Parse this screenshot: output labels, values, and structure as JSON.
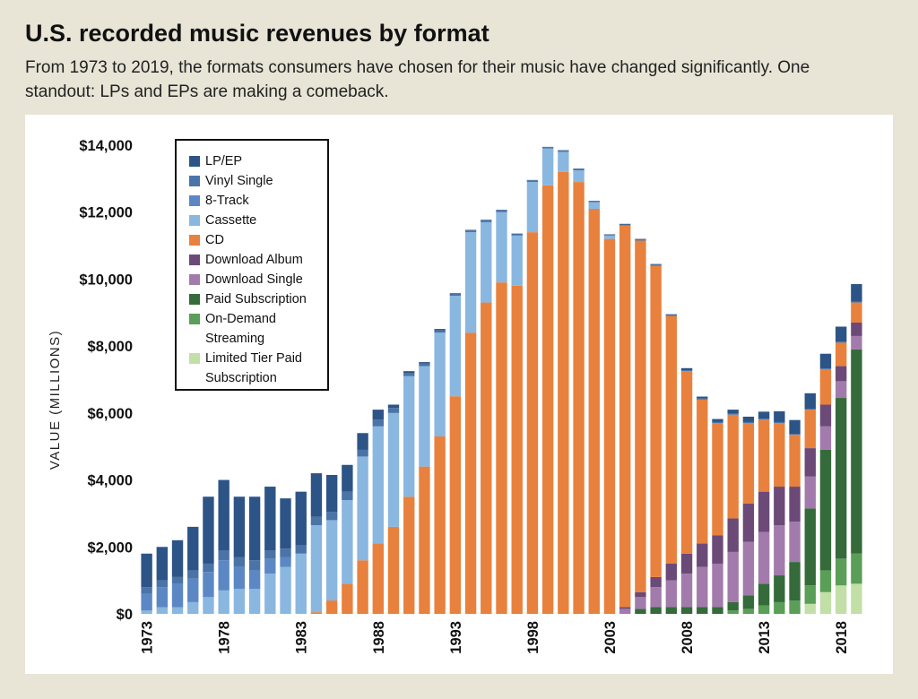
{
  "title": "U.S. recorded music revenues by format",
  "subtitle": "From 1973 to 2019, the formats consumers have chosen for their music have changed significantly. One standout: LPs and EPs are making a comeback.",
  "chart_data": {
    "type": "bar",
    "stacked": true,
    "ylabel": "VALUE (MILLIONS)",
    "xlabel": "",
    "ylim": [
      0,
      14000
    ],
    "yticks": [
      "$0",
      "$2,000",
      "$4,000",
      "$6,000",
      "$8,000",
      "$10,000",
      "$12,000",
      "$14,000"
    ],
    "ytick_values": [
      0,
      2000,
      4000,
      6000,
      8000,
      10000,
      12000,
      14000
    ],
    "categories": [
      1973,
      1974,
      1975,
      1976,
      1977,
      1978,
      1979,
      1980,
      1981,
      1982,
      1983,
      1984,
      1985,
      1986,
      1987,
      1988,
      1989,
      1990,
      1991,
      1992,
      1993,
      1994,
      1995,
      1996,
      1997,
      1998,
      1999,
      2000,
      2001,
      2002,
      2003,
      2004,
      2005,
      2006,
      2007,
      2008,
      2009,
      2010,
      2011,
      2012,
      2013,
      2014,
      2015,
      2016,
      2017,
      2018,
      2019
    ],
    "xtick_labels": [
      "1973",
      "1978",
      "1983",
      "1988",
      "1993",
      "1998",
      "2003",
      "2008",
      "2013",
      "2018"
    ],
    "legend_position": "top-left",
    "series": [
      {
        "name": "Limited Tier Paid Subscription",
        "color": "#c3dfa8",
        "values": [
          0,
          0,
          0,
          0,
          0,
          0,
          0,
          0,
          0,
          0,
          0,
          0,
          0,
          0,
          0,
          0,
          0,
          0,
          0,
          0,
          0,
          0,
          0,
          0,
          0,
          0,
          0,
          0,
          0,
          0,
          0,
          0,
          0,
          0,
          0,
          0,
          0,
          0,
          0,
          0,
          0,
          0,
          0,
          300,
          650,
          850,
          900
        ]
      },
      {
        "name": "On-Demand Streaming",
        "color": "#5a9e57",
        "values": [
          0,
          0,
          0,
          0,
          0,
          0,
          0,
          0,
          0,
          0,
          0,
          0,
          0,
          0,
          0,
          0,
          0,
          0,
          0,
          0,
          0,
          0,
          0,
          0,
          0,
          0,
          0,
          0,
          0,
          0,
          0,
          0,
          0,
          0,
          0,
          0,
          0,
          0,
          100,
          150,
          250,
          350,
          400,
          550,
          650,
          800,
          900
        ]
      },
      {
        "name": "Paid Subscription",
        "color": "#356b3a",
        "values": [
          0,
          0,
          0,
          0,
          0,
          0,
          0,
          0,
          0,
          0,
          0,
          0,
          0,
          0,
          0,
          0,
          0,
          0,
          0,
          0,
          0,
          0,
          0,
          0,
          0,
          0,
          0,
          0,
          0,
          0,
          0,
          0,
          150,
          200,
          200,
          200,
          200,
          200,
          250,
          400,
          650,
          800,
          1150,
          2300,
          3600,
          4800,
          6100
        ]
      },
      {
        "name": "Download Single",
        "color": "#a27bac",
        "values": [
          0,
          0,
          0,
          0,
          0,
          0,
          0,
          0,
          0,
          0,
          0,
          0,
          0,
          0,
          0,
          0,
          0,
          0,
          0,
          0,
          0,
          0,
          0,
          0,
          0,
          0,
          0,
          0,
          0,
          0,
          0,
          150,
          350,
          600,
          800,
          1000,
          1200,
          1300,
          1500,
          1600,
          1550,
          1500,
          1200,
          950,
          700,
          500,
          400
        ]
      },
      {
        "name": "Download Album",
        "color": "#6b4a78",
        "values": [
          0,
          0,
          0,
          0,
          0,
          0,
          0,
          0,
          0,
          0,
          0,
          0,
          0,
          0,
          0,
          0,
          0,
          0,
          0,
          0,
          0,
          0,
          0,
          0,
          0,
          0,
          0,
          0,
          0,
          0,
          0,
          50,
          150,
          300,
          500,
          600,
          700,
          850,
          1000,
          1150,
          1200,
          1150,
          1050,
          850,
          650,
          450,
          400
        ]
      },
      {
        "name": "CD",
        "color": "#e8813d",
        "values": [
          0,
          0,
          0,
          0,
          0,
          0,
          0,
          0,
          0,
          0,
          0,
          50,
          400,
          900,
          1600,
          2100,
          2600,
          3500,
          4400,
          5300,
          6500,
          8400,
          9300,
          9900,
          9800,
          11400,
          12800,
          13200,
          12900,
          12100,
          11200,
          11400,
          10500,
          9300,
          7400,
          5450,
          4300,
          3350,
          3100,
          2400,
          2150,
          1900,
          1550,
          1150,
          1050,
          700,
          600
        ]
      },
      {
        "name": "Cassette",
        "color": "#8ab7e0",
        "values": [
          100,
          200,
          200,
          350,
          500,
          700,
          750,
          750,
          1200,
          1400,
          1800,
          2600,
          2400,
          2500,
          3100,
          3500,
          3400,
          3600,
          3000,
          3100,
          3000,
          3000,
          2400,
          2100,
          1500,
          1500,
          1100,
          600,
          350,
          200,
          100,
          0,
          0,
          0,
          0,
          0,
          0,
          0,
          0,
          0,
          0,
          0,
          0,
          0,
          0,
          0,
          0
        ]
      },
      {
        "name": "8-Track",
        "color": "#5b88c5",
        "values": [
          500,
          600,
          700,
          700,
          750,
          900,
          650,
          550,
          450,
          300,
          0,
          0,
          0,
          0,
          0,
          0,
          0,
          0,
          0,
          0,
          0,
          0,
          0,
          0,
          0,
          0,
          0,
          0,
          0,
          0,
          0,
          0,
          0,
          0,
          0,
          0,
          0,
          0,
          0,
          0,
          0,
          0,
          0,
          0,
          0,
          0,
          0
        ]
      },
      {
        "name": "Vinyl Single",
        "color": "#4a74a8",
        "values": [
          200,
          200,
          200,
          250,
          250,
          300,
          300,
          300,
          250,
          250,
          250,
          250,
          250,
          250,
          200,
          200,
          150,
          100,
          80,
          70,
          60,
          50,
          50,
          50,
          50,
          50,
          40,
          30,
          30,
          30,
          30,
          30,
          30,
          30,
          30,
          30,
          30,
          30,
          30,
          30,
          30,
          30,
          30,
          30,
          30,
          30,
          30
        ]
      },
      {
        "name": "LP/EP",
        "color": "#2d5486",
        "values": [
          1000,
          1000,
          1100,
          1300,
          2000,
          2100,
          1800,
          1900,
          1900,
          1500,
          1600,
          1300,
          1100,
          800,
          500,
          300,
          100,
          50,
          40,
          40,
          20,
          20,
          20,
          20,
          10,
          10,
          10,
          20,
          20,
          10,
          10,
          20,
          20,
          20,
          20,
          60,
          60,
          90,
          120,
          160,
          210,
          320,
          410,
          460,
          440,
          450,
          520
        ]
      }
    ]
  }
}
